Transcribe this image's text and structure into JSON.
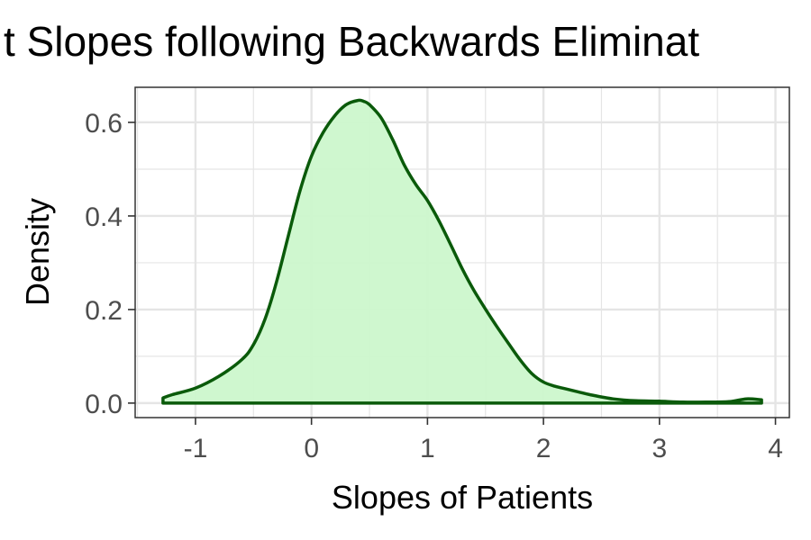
{
  "chart_data": {
    "type": "area",
    "title": "t Slopes following Backwards Eliminat",
    "xlabel": "Slopes of Patients",
    "ylabel": "Density",
    "xlim": [
      -1.52,
      4.12
    ],
    "ylim": [
      -0.031,
      0.675
    ],
    "x_ticks": [
      -1,
      0,
      1,
      2,
      3,
      4
    ],
    "x_tick_labels": [
      "-1",
      "0",
      "1",
      "2",
      "3",
      "4"
    ],
    "y_ticks": [
      0.0,
      0.2,
      0.4,
      0.6
    ],
    "y_tick_labels": [
      "0.0",
      "0.2",
      "0.4",
      "0.6"
    ],
    "grid": true,
    "colors": {
      "fill": "#ccf7cc",
      "line": "#0a5a0a",
      "panel_border": "#333333",
      "grid": "#e5e5e5"
    },
    "series": [
      {
        "x": [
          -1.28,
          -1.2,
          -1.0,
          -0.8,
          -0.6,
          -0.5,
          -0.4,
          -0.3,
          -0.2,
          -0.1,
          0.0,
          0.1,
          0.2,
          0.3,
          0.4,
          0.45,
          0.5,
          0.6,
          0.7,
          0.8,
          0.9,
          1.0,
          1.1,
          1.2,
          1.3,
          1.4,
          1.5,
          1.6,
          1.7,
          1.8,
          1.9,
          2.0,
          2.1,
          2.2,
          2.3,
          2.4,
          2.6,
          2.8,
          3.0,
          3.2,
          3.4,
          3.6,
          3.75,
          3.88
        ],
        "y": [
          0.011,
          0.018,
          0.032,
          0.057,
          0.093,
          0.125,
          0.18,
          0.26,
          0.357,
          0.453,
          0.528,
          0.578,
          0.614,
          0.638,
          0.647,
          0.645,
          0.638,
          0.61,
          0.563,
          0.509,
          0.467,
          0.433,
          0.389,
          0.339,
          0.287,
          0.241,
          0.201,
          0.163,
          0.127,
          0.092,
          0.063,
          0.045,
          0.036,
          0.03,
          0.024,
          0.018,
          0.009,
          0.005,
          0.004,
          0.002,
          0.002,
          0.003,
          0.009,
          0.007
        ]
      }
    ]
  }
}
